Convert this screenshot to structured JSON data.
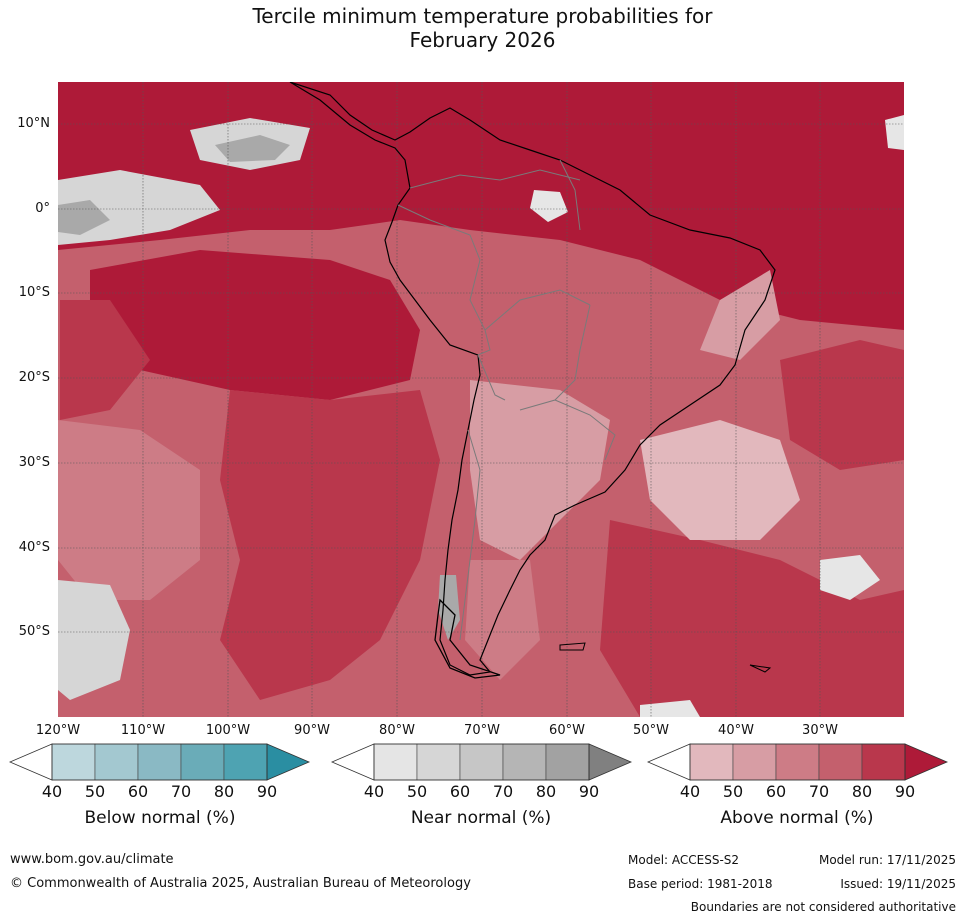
{
  "title": {
    "line1": "Tercile minimum temperature probabilities for",
    "line2": "February 2026"
  },
  "latitude_labels": [
    "10°N",
    "0°",
    "10°S",
    "20°S",
    "30°S",
    "40°S",
    "50°S"
  ],
  "longitude_labels": [
    "120°W",
    "110°W",
    "100°W",
    "90°W",
    "80°W",
    "70°W",
    "60°W",
    "50°W",
    "40°W",
    "30°W"
  ],
  "map": {
    "content": "Probability map over South America and surrounding oceans; most areas shaded above normal (red tones)",
    "dominant_category": "Above normal"
  },
  "colorbars": [
    {
      "name": "below-normal",
      "label": "Below normal (%)",
      "ticks": [
        "40",
        "50",
        "60",
        "70",
        "80",
        "90"
      ],
      "colors": [
        "#bdd7dd",
        "#a3c8d0",
        "#8ab9c4",
        "#6aacb8",
        "#4ea3b2",
        "#2a8ea2"
      ]
    },
    {
      "name": "near-normal",
      "label": "Near normal (%)",
      "ticks": [
        "40",
        "50",
        "60",
        "70",
        "80",
        "90"
      ],
      "colors": [
        "#e5e5e5",
        "#d6d6d6",
        "#c6c6c6",
        "#b5b5b5",
        "#a2a2a2",
        "#808080"
      ]
    },
    {
      "name": "above-normal",
      "label": "Above normal (%)",
      "ticks": [
        "40",
        "50",
        "60",
        "70",
        "80",
        "90"
      ],
      "colors": [
        "#e2b8bd",
        "#d79da4",
        "#cd7c86",
        "#c4606d",
        "#b9374c",
        "#ae1a38"
      ]
    }
  ],
  "footer": {
    "website": "www.bom.gov.au/climate",
    "copyright": "© Commonwealth of Australia 2025, Australian Bureau of Meteorology",
    "model": "Model: ACCESS-S2",
    "model_run": "Model run: 17/11/2025",
    "base_period": "Base period: 1981-2018",
    "issued": "Issued: 19/11/2025",
    "disclaimer": "Boundaries are not considered authoritative"
  },
  "colors": {
    "above_90": "#ae1a38",
    "above_80": "#b9374c",
    "above_70": "#c4606d",
    "above_60": "#cd7c86",
    "above_50": "#d79da4",
    "above_40": "#e2b8bd",
    "near_50": "#d6d6d6",
    "near_60": "#c6c6c6",
    "near_70": "#a9a9a9",
    "near_40": "#e6e6e6"
  }
}
